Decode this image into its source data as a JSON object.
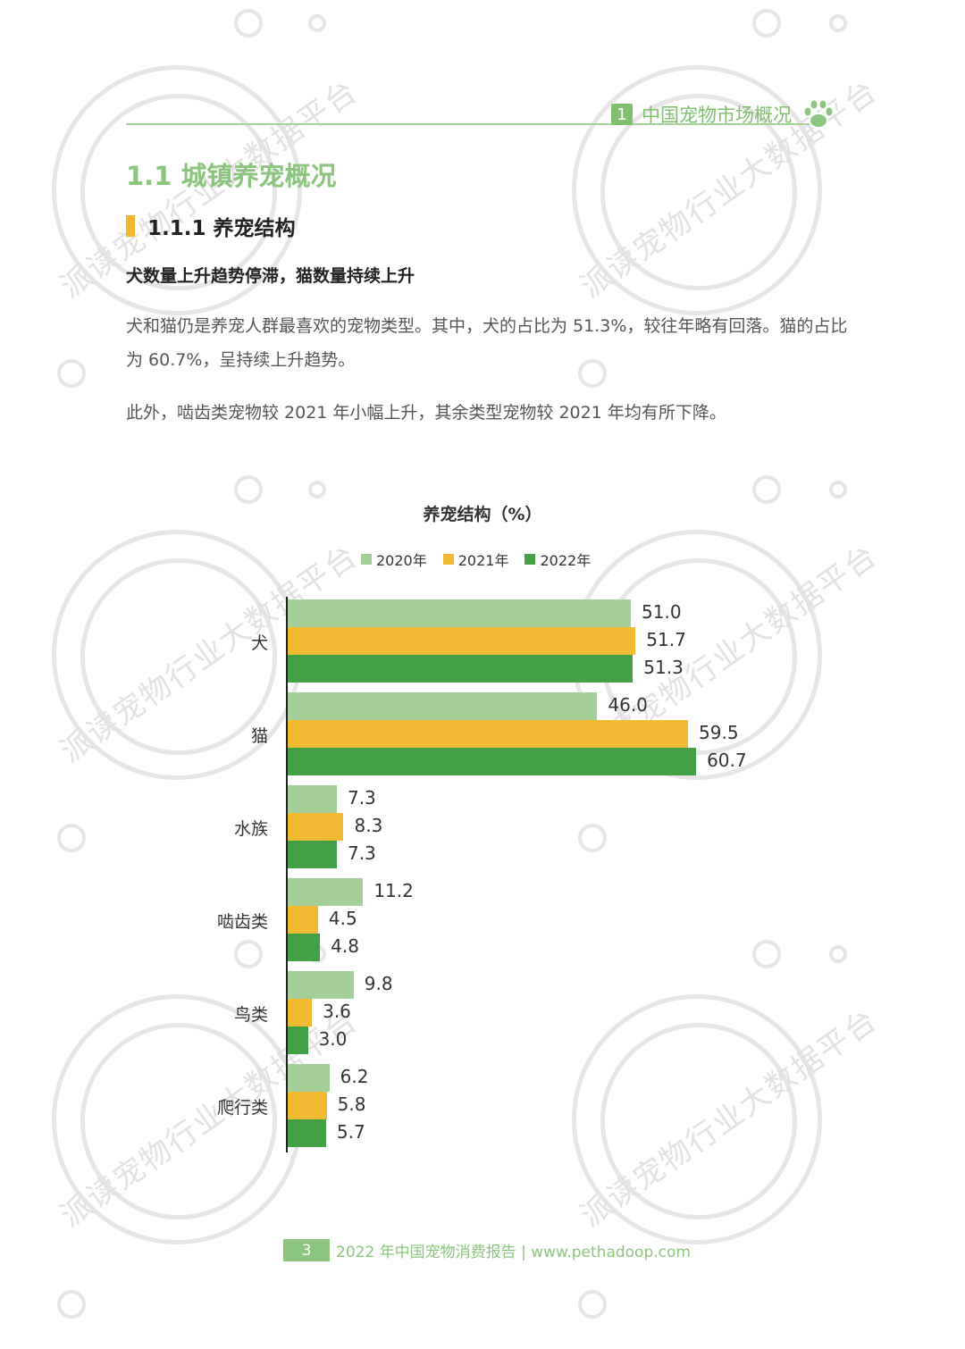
{
  "header": {
    "chapter_number": "1",
    "chapter_title": "中国宠物市场概况"
  },
  "section": {
    "h1": "1.1 城镇养宠概况",
    "h2": "1.1.1 养宠结构",
    "h3": "犬数量上升趋势停滞，猫数量持续上升",
    "paragraphs": [
      "犬和猫仍是养宠人群最喜欢的宠物类型。其中，犬的占比为 51.3%，较往年略有回落。猫的占比为 60.7%，呈持续上升趋势。",
      "此外，啮齿类宠物较 2021 年小幅上升，其余类型宠物较 2021 年均有所下降。"
    ]
  },
  "chart": {
    "title": "养宠结构（%）",
    "legend": [
      "2020年",
      "2021年",
      "2022年"
    ],
    "colors": [
      "#a4cf98",
      "#f2b933",
      "#43a047"
    ]
  },
  "chart_data": {
    "type": "bar",
    "orientation": "horizontal",
    "title": "养宠结构（%）",
    "xlabel": "",
    "ylabel": "",
    "categories": [
      "犬",
      "猫",
      "水族",
      "啮齿类",
      "鸟类",
      "爬行类"
    ],
    "series": [
      {
        "name": "2020年",
        "color": "#a4cf98",
        "values": [
          51.0,
          46.0,
          7.3,
          11.2,
          9.8,
          6.2
        ]
      },
      {
        "name": "2021年",
        "color": "#f2b933",
        "values": [
          51.7,
          59.5,
          8.3,
          4.5,
          3.6,
          5.8
        ]
      },
      {
        "name": "2022年",
        "color": "#43a047",
        "values": [
          51.3,
          60.7,
          7.3,
          4.8,
          3.0,
          5.7
        ]
      }
    ],
    "value_labels": [
      [
        "51.0",
        "51.7",
        "51.3"
      ],
      [
        "46.0",
        "59.5",
        "60.7"
      ],
      [
        "7.3",
        "8.3",
        "7.3"
      ],
      [
        "11.2",
        "4.5",
        "4.8"
      ],
      [
        "9.8",
        "3.6",
        "3.0"
      ],
      [
        "6.2",
        "5.8",
        "5.7"
      ]
    ],
    "legend_position": "top",
    "grid": false,
    "xlim": [
      0,
      70
    ]
  },
  "footer": {
    "page_number": "3",
    "text": "2022 年中国宠物消费报告 | www.pethadoop.com"
  },
  "watermark": {
    "text": "派读宠物行业大数据平台"
  }
}
